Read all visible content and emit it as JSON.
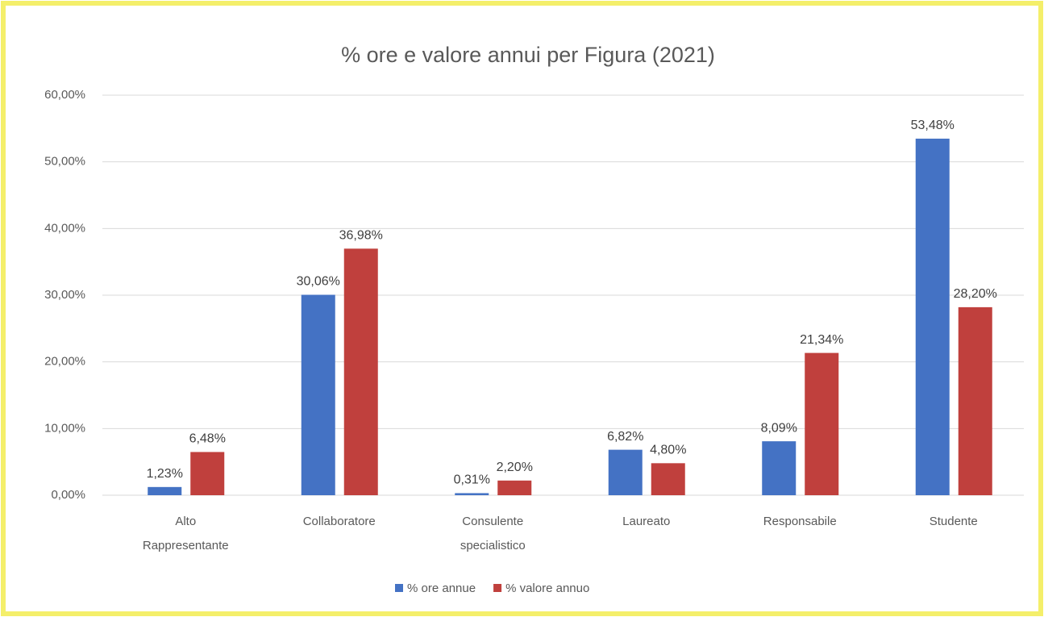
{
  "chart_data": {
    "type": "bar",
    "title": "% ore e valore annui per Figura (2021)",
    "categories": [
      "Alto Rappresentante",
      "Collaboratore",
      "Consulente specialistico",
      "Laureato",
      "Responsabile",
      "Studente"
    ],
    "series": [
      {
        "name": "% ore annue",
        "color": "#4472c4",
        "values": [
          1.23,
          30.06,
          0.31,
          6.82,
          8.09,
          53.48
        ],
        "value_labels": [
          "1,23%",
          "30,06%",
          "0,31%",
          "6,82%",
          "8,09%",
          "53,48%"
        ]
      },
      {
        "name": "% valore annuo",
        "color": "#c0403d",
        "values": [
          6.48,
          36.98,
          2.2,
          4.8,
          21.34,
          28.2
        ],
        "value_labels": [
          "6,48%",
          "36,98%",
          "2,20%",
          "4,80%",
          "21,34%",
          "28,20%"
        ]
      }
    ],
    "ylim": [
      0,
      60
    ],
    "yticks": [
      {
        "value": 0,
        "label": "0,00%"
      },
      {
        "value": 10,
        "label": "10,00%"
      },
      {
        "value": 20,
        "label": "20,00%"
      },
      {
        "value": 30,
        "label": "30,00%"
      },
      {
        "value": 40,
        "label": "40,00%"
      },
      {
        "value": 50,
        "label": "50,00%"
      },
      {
        "value": 60,
        "label": "60,00%"
      }
    ],
    "grid": true,
    "legend": "bottom"
  }
}
